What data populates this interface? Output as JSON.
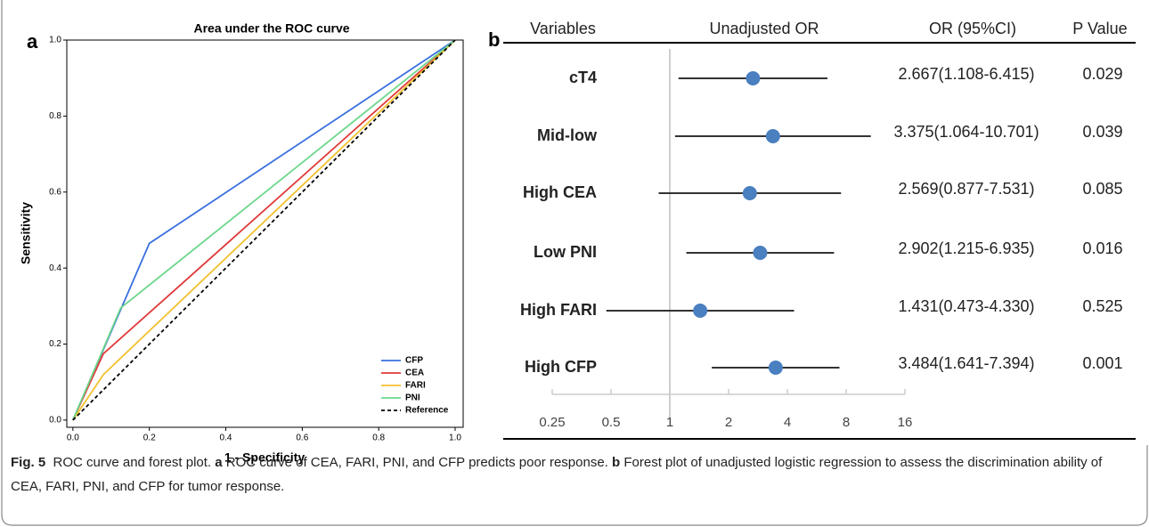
{
  "chart_data": [
    {
      "type": "line",
      "panel": "a",
      "title": "Area under the ROC curve",
      "xlabel": "1 - Specificity",
      "ylabel": "Sensitivity",
      "xlim": [
        -0.016,
        1.021
      ],
      "ylim": [
        -0.019,
        1.0
      ],
      "xticks": [
        {
          "value": 0,
          "label": "0.0"
        },
        0.2,
        0.4,
        0.6,
        0.8,
        {
          "value": 1,
          "label": "1.0"
        }
      ],
      "yticks": [
        {
          "value": 0,
          "label": "0.0"
        },
        0.2,
        0.4,
        0.6,
        0.8,
        {
          "value": 1,
          "label": "1.0"
        }
      ],
      "legend": "lower right",
      "series": [
        {
          "name": "CFP",
          "color": "#3a6fe0",
          "x": [
            0,
            0.2,
            1
          ],
          "values": [
            0,
            0.465,
            1
          ]
        },
        {
          "name": "CEA",
          "color": "#e03a3a",
          "x": [
            0,
            0.08,
            1
          ],
          "values": [
            0,
            0.175,
            1
          ]
        },
        {
          "name": "FARI",
          "color": "#f2c12e",
          "x": [
            0,
            0.08,
            1
          ],
          "values": [
            0,
            0.12,
            1
          ]
        },
        {
          "name": "PNI",
          "color": "#6cd68a",
          "x": [
            0,
            0.125,
            1
          ],
          "values": [
            0,
            0.295,
            1
          ]
        },
        {
          "name": "Reference",
          "color": "#000000",
          "dashed": true,
          "x": [
            0,
            1
          ],
          "values": [
            0,
            1
          ]
        }
      ]
    },
    {
      "type": "forest",
      "panel": "b",
      "log_scale": true,
      "reference": 1,
      "headers": [
        "Variables",
        "Unadjusted OR",
        "OR (95%CI)",
        "P Value"
      ],
      "categories": [
        "cT4",
        "Mid-low",
        "High CEA",
        "Low PNI",
        "High FARI",
        "High CFP"
      ],
      "values": [
        2.667,
        3.375,
        2.569,
        2.902,
        1.431,
        3.484
      ],
      "lower": [
        1.108,
        1.064,
        0.877,
        1.215,
        0.473,
        1.641
      ],
      "upper": [
        6.415,
        10.701,
        7.531,
        6.935,
        4.33,
        7.394
      ],
      "value_labels": [
        "2.667(1.108-6.415)",
        "3.375(1.064-10.701)",
        "2.569(0.877-7.531)",
        "2.902(1.215-6.935)",
        "1.431(0.473-4.330)",
        "3.484(1.641-7.394)"
      ],
      "p_values": [
        0.029,
        0.039,
        0.085,
        0.016,
        0.525,
        0.001
      ],
      "color": "#4a7fc0",
      "xlim": [
        0.25,
        16
      ],
      "xticks": [
        0.25,
        0.5,
        1,
        2,
        4,
        8,
        16
      ]
    }
  ],
  "caption": {
    "label": "Fig. 5",
    "title": "ROC curve and forest plot.",
    "parts": [
      {
        "label": "a",
        "text": "ROC curve of CEA, FARI, PNI, and CFP predicts poor response."
      },
      {
        "label": "b",
        "text": "Forest plot of unadjusted logistic regression to assess the discrimination ability of CEA, FARI, PNI, and CFP for tumor response."
      }
    ]
  }
}
